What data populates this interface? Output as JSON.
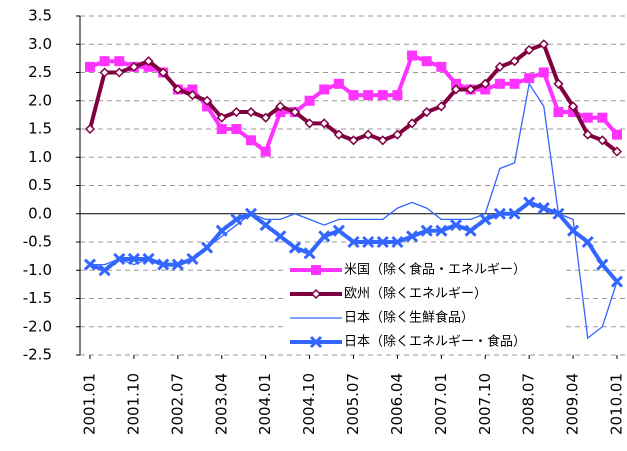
{
  "chart_data": {
    "type": "line",
    "categories": [
      "2001.01",
      null,
      null,
      "2001.10",
      null,
      null,
      "2002.07",
      null,
      null,
      "2003.04",
      null,
      null,
      "2004.01",
      null,
      null,
      "2004.10",
      null,
      null,
      "2005.07",
      null,
      null,
      "2006.04",
      null,
      null,
      "2007.01",
      null,
      null,
      "2007.10",
      null,
      null,
      "2008.07",
      null,
      null,
      "2009.04",
      null,
      null,
      "2010.01"
    ],
    "series": [
      {
        "name": "米国（除く食品・エネルギー）",
        "color": "#ff33ff",
        "marker": "square",
        "values": [
          2.6,
          2.7,
          2.7,
          2.6,
          2.6,
          2.5,
          2.2,
          2.2,
          1.9,
          1.5,
          1.5,
          1.3,
          1.1,
          1.8,
          1.8,
          2.0,
          2.2,
          2.3,
          2.1,
          2.1,
          2.1,
          2.1,
          2.8,
          2.7,
          2.6,
          2.3,
          2.2,
          2.2,
          2.3,
          2.3,
          2.4,
          2.5,
          1.8,
          1.8,
          1.7,
          1.7,
          1.4
        ]
      },
      {
        "name": "欧州（除くエネルギー）",
        "color": "#800040",
        "marker": "diamond",
        "values": [
          1.5,
          2.5,
          2.5,
          2.6,
          2.7,
          2.5,
          2.2,
          2.1,
          2.0,
          1.7,
          1.8,
          1.8,
          1.7,
          1.9,
          1.8,
          1.6,
          1.6,
          1.4,
          1.3,
          1.4,
          1.3,
          1.4,
          1.6,
          1.8,
          1.9,
          2.2,
          2.2,
          2.3,
          2.6,
          2.7,
          2.9,
          3.0,
          2.3,
          1.9,
          1.4,
          1.3,
          1.1
        ]
      },
      {
        "name": "日本（除く生鮮食品）",
        "color": "#3366ff",
        "marker": "none",
        "values": [
          -0.9,
          -0.9,
          -0.8,
          -0.9,
          -0.8,
          -0.9,
          -0.9,
          -0.8,
          -0.6,
          -0.4,
          -0.2,
          0.0,
          -0.1,
          -0.1,
          0.0,
          -0.1,
          -0.2,
          -0.1,
          -0.1,
          -0.1,
          -0.1,
          0.1,
          0.2,
          0.1,
          -0.1,
          -0.1,
          -0.1,
          0.0,
          0.8,
          0.9,
          2.3,
          1.9,
          0.0,
          -0.1,
          -2.2,
          -2.0,
          -1.2
        ]
      },
      {
        "name": "日本（除くエネルギー・食品）",
        "color": "#3366ff",
        "marker": "x",
        "values": [
          -0.9,
          -1.0,
          -0.8,
          -0.8,
          -0.8,
          -0.9,
          -0.9,
          -0.8,
          -0.6,
          -0.3,
          -0.1,
          0.0,
          -0.2,
          -0.4,
          -0.6,
          -0.7,
          -0.4,
          -0.3,
          -0.5,
          -0.5,
          -0.5,
          -0.5,
          -0.4,
          -0.3,
          -0.3,
          -0.2,
          -0.3,
          -0.1,
          0.0,
          0.0,
          0.2,
          0.1,
          0.0,
          -0.3,
          -0.5,
          -0.9,
          -1.2
        ]
      }
    ],
    "ylim": [
      -2.5,
      3.5
    ],
    "yticks": [
      {
        "value": -2.5,
        "label": "-2.5"
      },
      {
        "value": -2,
        "label": "-2.0"
      },
      {
        "value": -1.5,
        "label": "-1.5"
      },
      {
        "value": -1,
        "label": "-1.0"
      },
      {
        "value": -0.5,
        "label": "-0.5"
      },
      {
        "value": 0,
        "label": "0.0"
      },
      {
        "value": 0.5,
        "label": "0.5"
      },
      {
        "value": 1,
        "label": "1.0"
      },
      {
        "value": 1.5,
        "label": "1.5"
      },
      {
        "value": 2,
        "label": "2.0"
      },
      {
        "value": 2.5,
        "label": "2.5"
      },
      {
        "value": 3,
        "label": "3.0"
      },
      {
        "value": 3.5,
        "label": "3.5"
      }
    ],
    "grid": true
  }
}
